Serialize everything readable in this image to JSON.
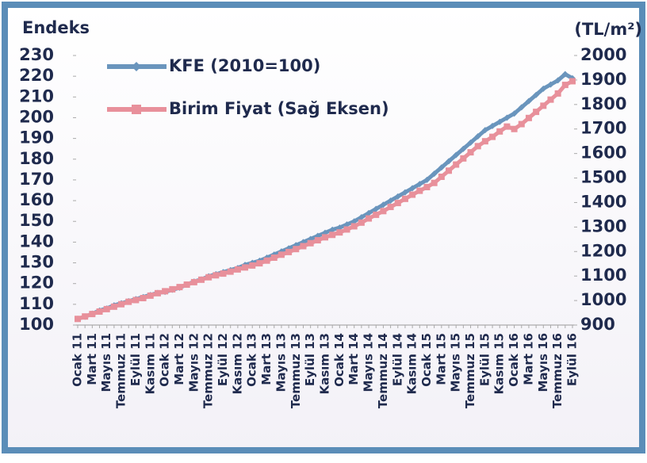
{
  "chart_data": {
    "type": "line",
    "y_label": "Endeks",
    "y2_label": "(TL/m²)",
    "categories": [
      "Ocak 11",
      null,
      "Mart 11",
      null,
      "Mayıs 11",
      null,
      "Temmuz 11",
      null,
      "Eylül 11",
      null,
      "Kasım 11",
      null,
      "Ocak 12",
      null,
      "Mart 12",
      null,
      "Mayıs 12",
      null,
      "Temmuz 12",
      null,
      "Eylül 12",
      null,
      "Kasım 12",
      null,
      "Ocak 13",
      null,
      "Mart 13",
      null,
      "Mayıs 13",
      null,
      "Temmuz 13",
      null,
      "Eylül 13",
      null,
      "Kasım 13",
      null,
      "Ocak 14",
      null,
      "Mart 14",
      null,
      "Mayıs 14",
      null,
      "Temmuz 14",
      null,
      "Eylül 14",
      null,
      "Kasım 14",
      null,
      "Ocak 15",
      null,
      "Mart 15",
      null,
      "Mayıs 15",
      null,
      "Temmuz 15",
      null,
      "Eylül 15",
      null,
      "Kasım 15",
      null,
      "Ocak 16",
      null,
      "Mart 16",
      null,
      "Mayıs 16",
      null,
      "Temmuz 16",
      null,
      "Eylül 16"
    ],
    "series": [
      {
        "name": "KFE (2010=100)",
        "color": "#6a95bd",
        "marker": "diamond",
        "values": [
          103,
          104,
          105.5,
          107,
          108,
          109.5,
          110.5,
          111.5,
          112.5,
          113.5,
          114.5,
          115.5,
          116,
          117,
          118,
          119.5,
          121,
          122,
          123.5,
          124.5,
          125.5,
          126.5,
          127.5,
          129,
          130,
          131,
          132.5,
          134,
          135.5,
          137,
          138.5,
          140,
          141.5,
          143,
          144.5,
          146,
          147,
          148.5,
          150,
          152,
          154,
          156,
          158,
          160,
          162,
          164,
          166,
          168,
          170,
          173,
          176,
          179,
          182,
          185,
          188,
          191,
          194,
          196,
          198,
          200,
          202,
          205,
          208,
          211,
          214,
          216,
          218,
          221,
          219
        ]
      },
      {
        "name": "Birim Fiyat (Sağ Eksen)",
        "color": "#e8909b",
        "marker": "square",
        "axis": "y2",
        "values": [
          925,
          935,
          945,
          955,
          965,
          975,
          985,
          995,
          1002,
          1010,
          1020,
          1030,
          1038,
          1046,
          1055,
          1065,
          1075,
          1085,
          1095,
          1103,
          1110,
          1118,
          1127,
          1135,
          1143,
          1152,
          1163,
          1175,
          1187,
          1198,
          1210,
          1222,
          1234,
          1246,
          1258,
          1268,
          1278,
          1290,
          1303,
          1318,
          1335,
          1350,
          1365,
          1382,
          1398,
          1415,
          1432,
          1448,
          1463,
          1480,
          1505,
          1530,
          1555,
          1580,
          1605,
          1630,
          1650,
          1668,
          1690,
          1710,
          1700,
          1720,
          1745,
          1770,
          1795,
          1820,
          1845,
          1880,
          1895
        ]
      }
    ],
    "ylim": [
      100,
      230
    ],
    "yticks": [
      100,
      110,
      120,
      130,
      140,
      150,
      160,
      170,
      180,
      190,
      200,
      210,
      220,
      230
    ],
    "y2lim": [
      900,
      2000
    ],
    "y2ticks": [
      900,
      1000,
      1100,
      1200,
      1300,
      1400,
      1500,
      1600,
      1700,
      1800,
      1900,
      2000
    ],
    "legend": "upper left",
    "grid": false
  }
}
